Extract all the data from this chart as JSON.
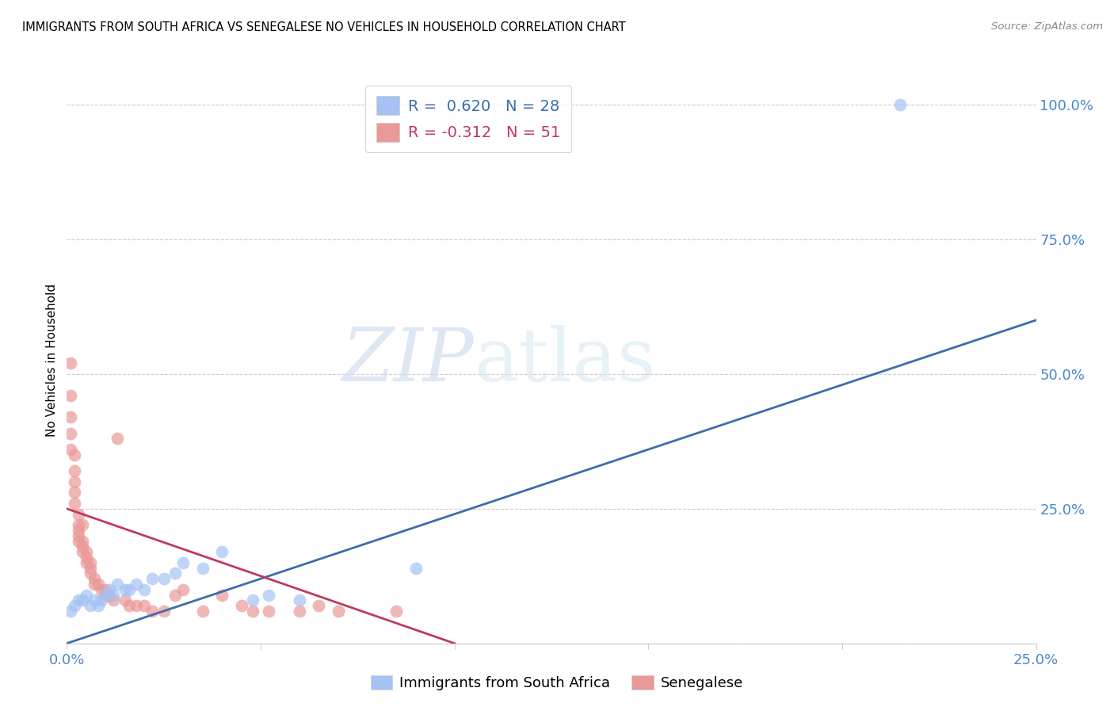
{
  "title": "IMMIGRANTS FROM SOUTH AFRICA VS SENEGALESE NO VEHICLES IN HOUSEHOLD CORRELATION CHART",
  "source": "Source: ZipAtlas.com",
  "ylabel": "No Vehicles in Household",
  "xlim": [
    0.0,
    0.25
  ],
  "ylim": [
    0.0,
    1.05
  ],
  "blue_color": "#a4c2f4",
  "pink_color": "#ea9999",
  "blue_line_color": "#3d6daa",
  "pink_line_color": "#c0395e",
  "R_blue": 0.62,
  "N_blue": 28,
  "R_pink": -0.312,
  "N_pink": 51,
  "legend_label_blue": "Immigrants from South Africa",
  "legend_label_pink": "Senegalese",
  "watermark_zip": "ZIP",
  "watermark_atlas": "atlas",
  "blue_line_x": [
    0.0,
    0.25
  ],
  "blue_line_y": [
    0.0,
    0.6
  ],
  "pink_line_x": [
    0.0,
    0.1
  ],
  "pink_line_y": [
    0.25,
    0.0
  ],
  "blue_scatter_x": [
    0.001,
    0.002,
    0.003,
    0.004,
    0.005,
    0.006,
    0.007,
    0.008,
    0.009,
    0.01,
    0.011,
    0.012,
    0.013,
    0.015,
    0.016,
    0.018,
    0.02,
    0.022,
    0.025,
    0.028,
    0.03,
    0.035,
    0.04,
    0.048,
    0.052,
    0.06,
    0.09,
    0.215
  ],
  "blue_scatter_y": [
    0.06,
    0.07,
    0.08,
    0.08,
    0.09,
    0.07,
    0.08,
    0.07,
    0.08,
    0.09,
    0.1,
    0.09,
    0.11,
    0.1,
    0.1,
    0.11,
    0.1,
    0.12,
    0.12,
    0.13,
    0.15,
    0.14,
    0.17,
    0.08,
    0.09,
    0.08,
    0.14,
    1.0
  ],
  "pink_scatter_x": [
    0.001,
    0.001,
    0.001,
    0.001,
    0.001,
    0.002,
    0.002,
    0.002,
    0.002,
    0.002,
    0.003,
    0.003,
    0.003,
    0.003,
    0.003,
    0.004,
    0.004,
    0.004,
    0.004,
    0.005,
    0.005,
    0.005,
    0.006,
    0.006,
    0.006,
    0.007,
    0.007,
    0.008,
    0.009,
    0.01,
    0.01,
    0.011,
    0.012,
    0.013,
    0.015,
    0.016,
    0.018,
    0.02,
    0.022,
    0.025,
    0.028,
    0.03,
    0.035,
    0.04,
    0.045,
    0.048,
    0.052,
    0.06,
    0.065,
    0.07,
    0.085
  ],
  "pink_scatter_y": [
    0.52,
    0.46,
    0.42,
    0.39,
    0.36,
    0.35,
    0.32,
    0.3,
    0.28,
    0.26,
    0.24,
    0.22,
    0.21,
    0.2,
    0.19,
    0.19,
    0.18,
    0.17,
    0.22,
    0.17,
    0.16,
    0.15,
    0.15,
    0.14,
    0.13,
    0.12,
    0.11,
    0.11,
    0.1,
    0.1,
    0.09,
    0.09,
    0.08,
    0.38,
    0.08,
    0.07,
    0.07,
    0.07,
    0.06,
    0.06,
    0.09,
    0.1,
    0.06,
    0.09,
    0.07,
    0.06,
    0.06,
    0.06,
    0.07,
    0.06,
    0.06
  ]
}
